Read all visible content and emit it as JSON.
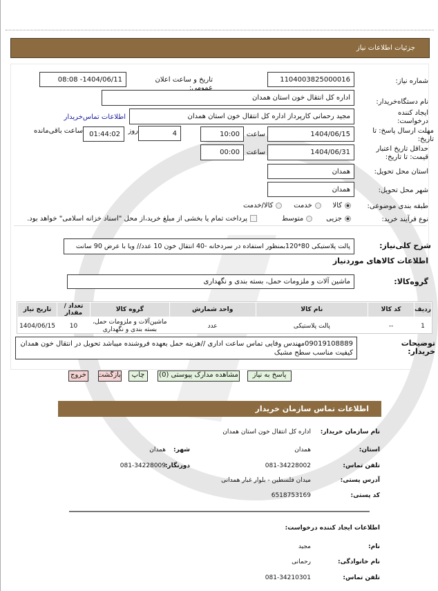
{
  "page_title": "جزئیات اطلاعات نیاز",
  "form": {
    "need_number_label": "شماره نیاز:",
    "need_number": "1104003825000016",
    "announce_label": "تاریخ و ساعت اعلان عمومی:",
    "announce_value": "1404/06/11- 08:08",
    "buyer_org_label": "نام دستگاه‌خریدار:",
    "buyer_org": "اداره کل انتقال خون استان همدان",
    "creator_label": "ایجاد کننده درخواست:",
    "creator": "مجید رحمانی کارپرداز اداره کل انتقال خون استان همدان",
    "contact_link": "اطلاعات تماس‌خریدار",
    "deadline_label": "مهلت ارسال پاسخ: تا تاریخ:",
    "deadline_date": "1404/06/15",
    "time_label": "ساعت",
    "deadline_time": "10:00",
    "days": "4",
    "days_label": "روز",
    "remaining": "01:44:02",
    "remaining_label": "ساعت باقی‌مانده",
    "validity_label": "حداقل تاریخ اعتبار قیمت: تا تاریخ:",
    "validity_date": "1404/06/31",
    "validity_time": "00:00",
    "province_label": "استان محل تحویل:",
    "province": "همدان",
    "city_label": "شهر محل تحویل:",
    "city": "همدان",
    "category_label": "طبقه بندی موضوعی:",
    "category_options": [
      "کالا",
      "خدمت",
      "کالا/خدمت"
    ],
    "category_selected": "کالا",
    "process_label": "نوع فرآیند خرید:",
    "process_options": [
      "جزیی",
      "متوسط"
    ],
    "process_selected": "جزیی",
    "payment_note": "پرداخت تمام یا بخشی از مبلغ خرید،از محل \"اسناد خزانه اسلامی\" خواهد بود.",
    "summary_label": "شرح کلی‌نیاز:",
    "summary": "پالت پلاستیکی 80*120بمنظور استفاده در سردخانه -40 انتقال خون 10 عدد// ویا با عرض 90 سانت",
    "goods_heading": "اطلاعات کالاهای موردنیاز",
    "group_label": "گروه‌کالا:",
    "group": "ماشین آلات و ملزومات حمل، بسته بندی و نگهداری"
  },
  "table": {
    "headers": [
      "ردیف",
      "کد کالا",
      "نام کالا",
      "واحد شمارش",
      "گروه کالا",
      "تعداد / مقدار",
      "تاریخ نیاز"
    ],
    "rows": [
      [
        "1",
        "--",
        "پالت پلاستیکی",
        "عدد",
        "ماشین‌آلات و ملزومات حمل، بسته بندی و نگهداری",
        "10",
        "1404/06/15"
      ]
    ]
  },
  "buyer_notes_label": "توضیحات خریدار:",
  "buyer_notes": "09019108889مهندس وفایی تماس ساعت اداری //هزینه حمل بعهده فروشنده میباشد تحویل در انتقال خون همدان کیفیت مناسب سطح مشبک",
  "buttons": {
    "reply": "پاسخ به نیاز",
    "docs": "مشاهده مدارک پیوستی (0)",
    "print": "چاپ",
    "back": "بازگشت",
    "exit": "خروج"
  },
  "contact": {
    "title": "اطلاعات تماس سازمان خریدار",
    "org_label": "نام سازمان خریدار:",
    "org": "اداره کل انتقال خون استان همدان",
    "province_label": "استان:",
    "province": "همدان",
    "city_label": "شهر:",
    "city": "همدان",
    "phone_label": "تلفن تماس:",
    "phone": "081-34228002",
    "fax_label": "دورنگار:",
    "fax": "081-34228009",
    "address_label": "آدرس پستی:",
    "address": "میدان فلسطین - بلوار غبار همدانی",
    "postal_label": "کد پستی:",
    "postal": "6518753169"
  },
  "creator_info": {
    "title": "اطلاعات ایجاد کننده درخواست:",
    "name_label": "نام:",
    "name": "مجید",
    "family_label": "نام خانوادگی:",
    "family": "رحمانی",
    "phone_label": "تلفن تماس:",
    "phone": "081-34210301"
  },
  "colors": {
    "header": "#8b6b3f",
    "button_green": "#e4f3de",
    "button_red": "#f6d4d4",
    "link": "#1a1aa0"
  }
}
